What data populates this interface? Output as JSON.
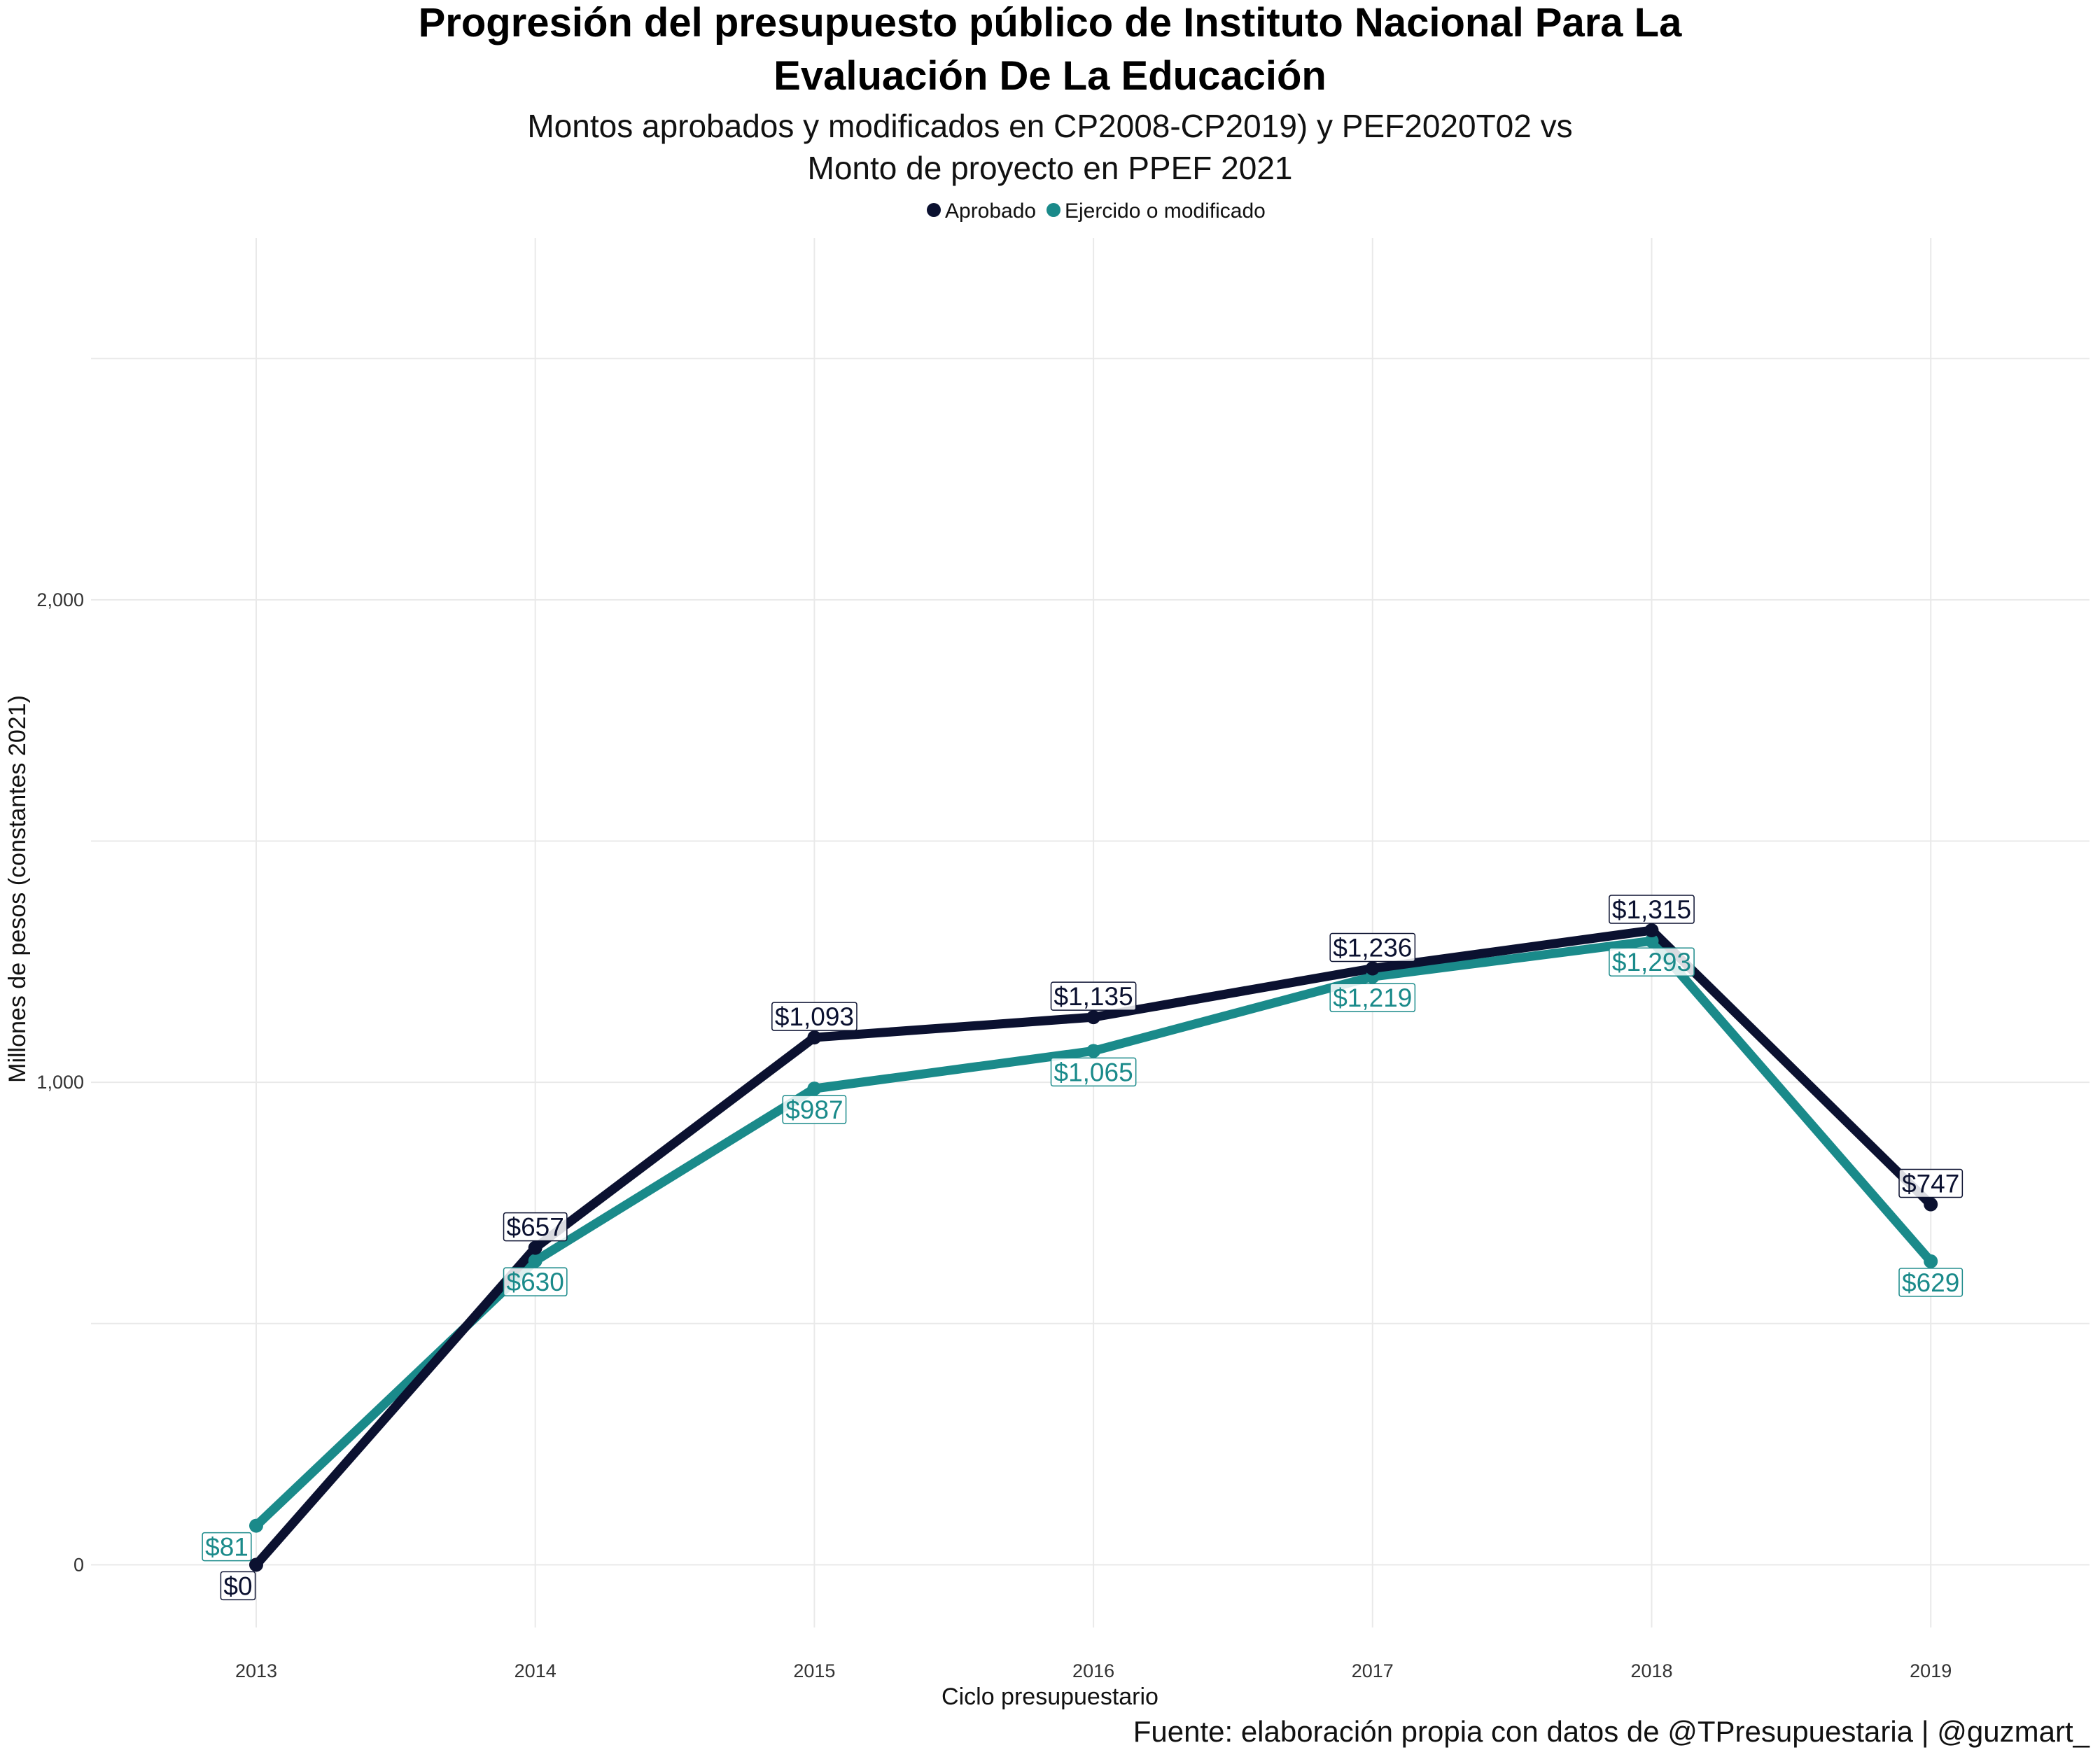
{
  "chart_data": {
    "type": "line",
    "title_lines": [
      "Progresión del presupuesto público de Instituto Nacional Para La",
      "Evaluación De La Educación"
    ],
    "subtitle_lines": [
      "Montos aprobados y modificados en CP2008-CP2019) y PEF2020T02 vs",
      "Monto de proyecto en PPEF 2021"
    ],
    "xlabel": "Ciclo presupuestario",
    "ylabel": "Millones de pesos (constantes 2021)",
    "caption": "Fuente: elaboración propia con datos de @TPresupuestaria | @guzmart_",
    "legend_position": "top",
    "grid": true,
    "x": [
      "2013",
      "2014",
      "2015",
      "2016",
      "2017",
      "2018",
      "2019"
    ],
    "ylim": [
      -130,
      2750
    ],
    "y_ticks": [
      0,
      1000,
      2000
    ],
    "y_tick_labels": [
      "0",
      "1,000",
      "2,000"
    ],
    "series": [
      {
        "name": "Aprobado",
        "color": "#0b1130",
        "values": [
          0,
          657,
          1093,
          1135,
          1236,
          1315,
          747
        ],
        "labels": [
          "$0",
          "$657",
          "$1,093",
          "$1,135",
          "$1,236",
          "$1,315",
          "$747"
        ]
      },
      {
        "name": "Ejercido o modificado",
        "color": "#1a8a8a",
        "values": [
          81,
          630,
          987,
          1065,
          1219,
          1293,
          629
        ],
        "labels": [
          "$81",
          "$630",
          "$987",
          "$1,065",
          "$1,219",
          "$1,293",
          "$629"
        ]
      }
    ]
  }
}
